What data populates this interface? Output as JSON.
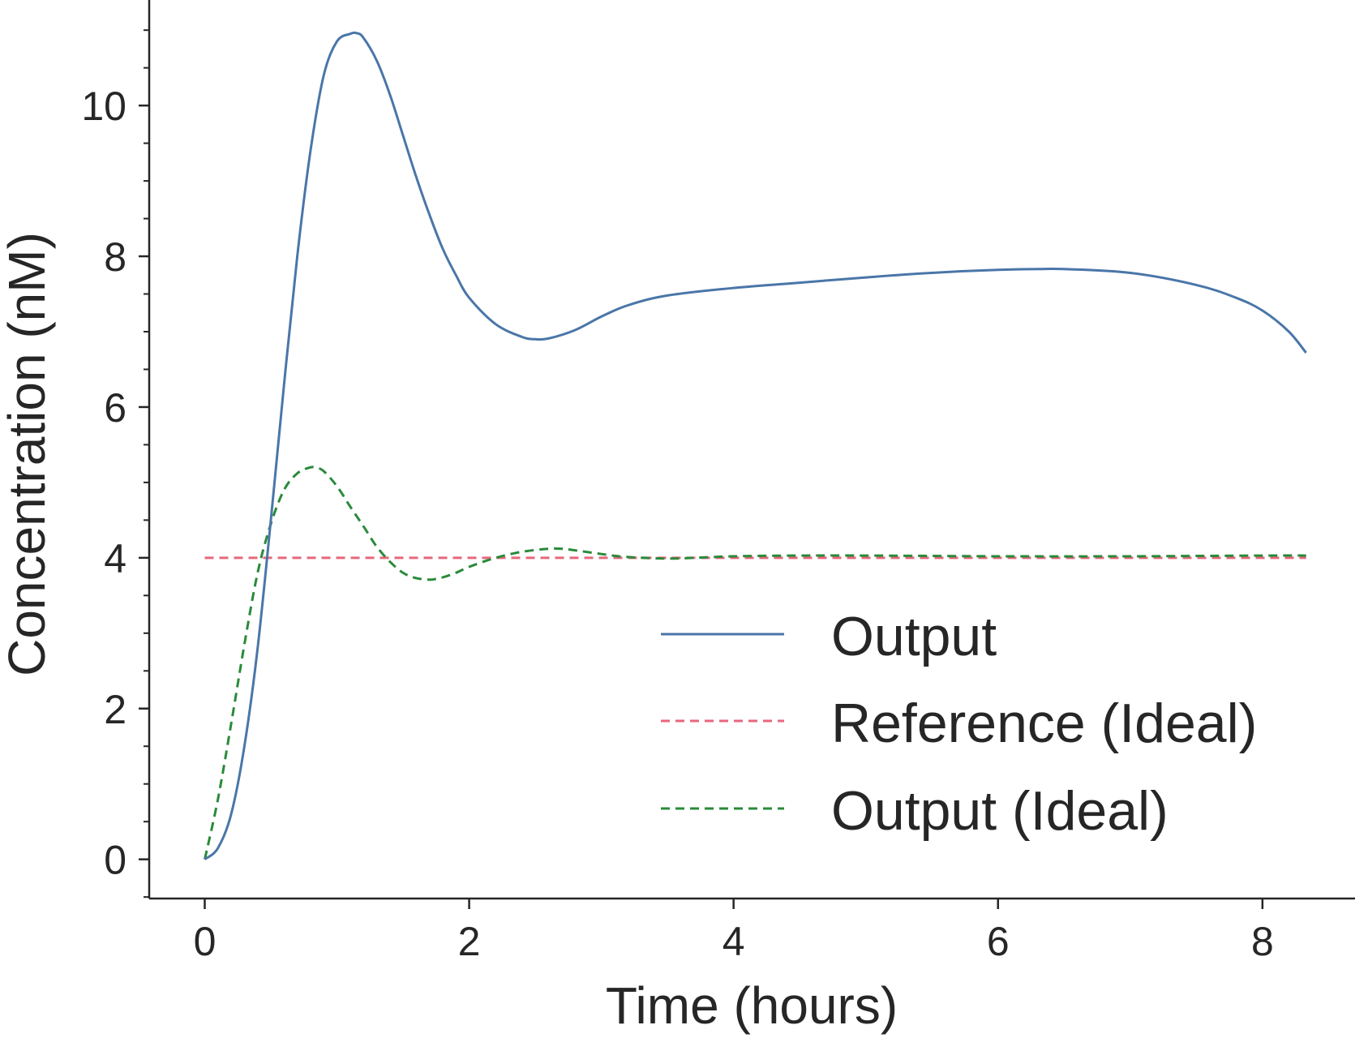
{
  "chart_data": {
    "type": "line",
    "xlabel": "Time (hours)",
    "ylabel": "Concentration (nM)",
    "xlim": [
      -0.42,
      8.7
    ],
    "ylim": [
      -0.52,
      11.4
    ],
    "xticks": [
      0,
      2,
      4,
      6,
      8
    ],
    "yticks": [
      0,
      2,
      4,
      6,
      8,
      10
    ],
    "y_minor_step": 0.5,
    "grid": false,
    "legend": "lower-right",
    "series": [
      {
        "name": "Output",
        "color": "#4a76a8",
        "style": "solid",
        "x": [
          0,
          0.1,
          0.2,
          0.3,
          0.4,
          0.5,
          0.6,
          0.7,
          0.8,
          0.9,
          1.0,
          1.1,
          1.15,
          1.2,
          1.3,
          1.4,
          1.5,
          1.6,
          1.7,
          1.8,
          1.9,
          2.0,
          2.2,
          2.4,
          2.5,
          2.6,
          2.8,
          3.0,
          3.2,
          3.5,
          4.0,
          4.5,
          5.0,
          5.5,
          6.0,
          6.3,
          6.5,
          7.0,
          7.5,
          7.8,
          8.0,
          8.2,
          8.33
        ],
        "y": [
          0,
          0.15,
          0.6,
          1.5,
          2.8,
          4.5,
          6.3,
          8.0,
          9.4,
          10.4,
          10.85,
          10.95,
          10.96,
          10.9,
          10.6,
          10.15,
          9.6,
          9.05,
          8.55,
          8.1,
          7.75,
          7.45,
          7.1,
          6.93,
          6.9,
          6.91,
          7.02,
          7.2,
          7.35,
          7.48,
          7.58,
          7.65,
          7.72,
          7.78,
          7.82,
          7.83,
          7.83,
          7.78,
          7.62,
          7.45,
          7.28,
          7.0,
          6.72
        ]
      },
      {
        "name": "Reference (Ideal)",
        "color": "#e8677d",
        "style": "dashed",
        "x": [
          0,
          8.33
        ],
        "y": [
          4,
          4
        ]
      },
      {
        "name": "Output (Ideal)",
        "color": "#2a8a3a",
        "style": "dashed",
        "x": [
          0,
          0.1,
          0.2,
          0.3,
          0.4,
          0.5,
          0.6,
          0.7,
          0.8,
          0.85,
          0.9,
          1.0,
          1.1,
          1.2,
          1.3,
          1.4,
          1.5,
          1.6,
          1.7,
          1.75,
          1.8,
          1.9,
          2.0,
          2.2,
          2.4,
          2.6,
          2.7,
          2.8,
          3.0,
          3.2,
          3.5,
          3.7,
          4.0,
          4.5,
          5.0,
          6.0,
          7.0,
          8.0,
          8.33
        ],
        "y": [
          0,
          0.8,
          1.8,
          2.85,
          3.8,
          4.45,
          4.9,
          5.12,
          5.2,
          5.19,
          5.15,
          4.95,
          4.68,
          4.42,
          4.15,
          3.95,
          3.8,
          3.73,
          3.71,
          3.72,
          3.74,
          3.8,
          3.88,
          4.0,
          4.08,
          4.12,
          4.12,
          4.1,
          4.05,
          4.01,
          3.99,
          4.0,
          4.02,
          4.03,
          4.03,
          4.02,
          4.02,
          4.03,
          4.03
        ]
      }
    ]
  }
}
